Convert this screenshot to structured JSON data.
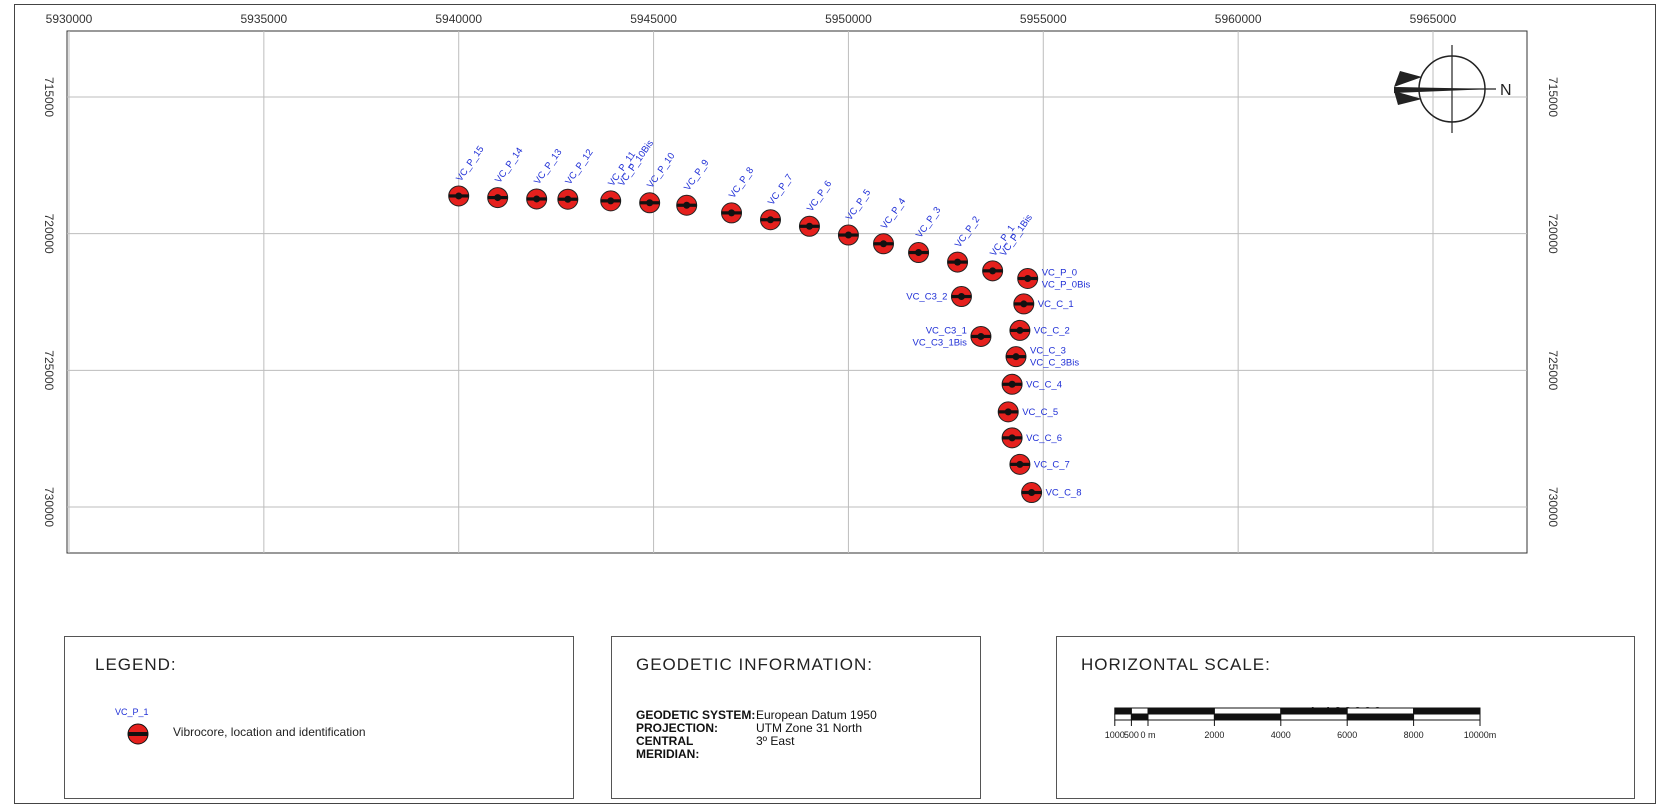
{
  "map": {
    "x_axis": {
      "ticks": [
        "5930000",
        "5935000",
        "5940000",
        "5945000",
        "5950000",
        "5955000",
        "5960000",
        "5965000"
      ]
    },
    "y_axis": {
      "left_ticks": [
        "715000",
        "720000",
        "725000",
        "730000"
      ],
      "right_ticks": [
        "715000",
        "720000",
        "725000",
        "730000"
      ]
    },
    "north_arrow_label": "N",
    "points": [
      {
        "label": "VC_P_15",
        "x": 5940000,
        "y": 718620
      },
      {
        "label": "VC_P_14",
        "x": 5941000,
        "y": 718680
      },
      {
        "label": "VC_P_13",
        "x": 5942000,
        "y": 718730
      },
      {
        "label": "VC_P_12",
        "x": 5942800,
        "y": 718740
      },
      {
        "label": "VC_P_11 / VC_P_10Bis",
        "x": 5943900,
        "y": 718800
      },
      {
        "label": "VC_P_10",
        "x": 5944900,
        "y": 718870
      },
      {
        "label": "VC_P_9",
        "x": 5945850,
        "y": 718960
      },
      {
        "label": "VC_P_8",
        "x": 5947000,
        "y": 719240
      },
      {
        "label": "VC_P_7",
        "x": 5948000,
        "y": 719490
      },
      {
        "label": "VC_P_6",
        "x": 5949000,
        "y": 719730
      },
      {
        "label": "VC_P_5",
        "x": 5950000,
        "y": 720050
      },
      {
        "label": "VC_P_4",
        "x": 5950900,
        "y": 720370
      },
      {
        "label": "VC_P_3",
        "x": 5951800,
        "y": 720690
      },
      {
        "label": "VC_P_2",
        "x": 5952800,
        "y": 721040
      },
      {
        "label": "VC_P_1 / VC_P_1Bis",
        "x": 5953700,
        "y": 721360
      },
      {
        "label": "VC_P_0 / VC_P_0Bis",
        "x": 5954600,
        "y": 721640
      },
      {
        "label": "VC_C_1",
        "x": 5954500,
        "y": 722570
      },
      {
        "label": "VC_C_2",
        "x": 5954400,
        "y": 723540
      },
      {
        "label": "VC_C_3 / VC_C_3Bis",
        "x": 5954300,
        "y": 724500
      },
      {
        "label": "VC_C_4",
        "x": 5954200,
        "y": 725510
      },
      {
        "label": "VC_C_5",
        "x": 5954100,
        "y": 726520
      },
      {
        "label": "VC_C_6",
        "x": 5954200,
        "y": 727470
      },
      {
        "label": "VC_C_7",
        "x": 5954400,
        "y": 728440
      },
      {
        "label": "VC_C_8",
        "x": 5954700,
        "y": 729470
      },
      {
        "label": "VC_C3_2",
        "x": 5952900,
        "y": 722300
      },
      {
        "label": "VC_C3_1 / VC_C3_1Bis",
        "x": 5953400,
        "y": 723760
      }
    ],
    "point_labels_rotated": [
      "VC_P_15",
      "VC_P_14",
      "VC_P_13",
      "VC_P_12",
      "VC_P_11",
      "VC_P_10Bis",
      "VC_P_10",
      "VC_P_9",
      "VC_P_8",
      "VC_P_7",
      "VC_P_6",
      "VC_P_5",
      "VC_P_4",
      "VC_P_3",
      "VC_P_2",
      "VC_P_1",
      "VC_P_1Bis"
    ],
    "point_labels_horizontal": [
      "VC_P_0",
      "VC_P_0Bis",
      "VC_C3_2",
      "VC_C_1",
      "VC_C3_1",
      "VC_C3_1Bis",
      "VC_C_2",
      "VC_C_3",
      "VC_C_3Bis",
      "VC_C_4",
      "VC_C_5",
      "VC_C_6",
      "VC_C_7",
      "VC_C_8"
    ],
    "colors": {
      "marker_fill": "#e5201d",
      "marker_center": "#111111",
      "label": "#1f2fd6",
      "grid": "#bdbdbd"
    }
  },
  "legend": {
    "title": "LEGEND:",
    "sample_label": "VC_P_1",
    "description": "Vibrocore, location and identification"
  },
  "geodetic": {
    "title": "GEODETIC INFORMATION:",
    "rows": [
      {
        "key": "GEODETIC SYSTEM:",
        "value": "European Datum 1950"
      },
      {
        "key": "PROJECTION:",
        "value": "UTM Zone 31 North"
      },
      {
        "key": "CENTRAL MERIDIAN:",
        "value": "3º East"
      }
    ]
  },
  "scale": {
    "title": "HORIZONTAL SCALE:",
    "ratio": "1:100000",
    "tick_labels": [
      "1000",
      "500",
      "0 m",
      "2000",
      "4000",
      "6000",
      "8000",
      "10000m"
    ]
  }
}
